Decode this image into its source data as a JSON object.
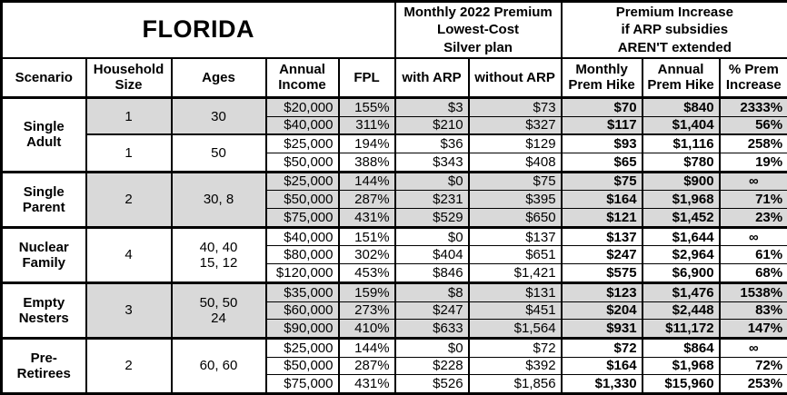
{
  "chart_data": {
    "type": "table",
    "title": "FLORIDA",
    "column_groups": [
      {
        "label": "Monthly 2022 Premium\nLowest-Cost\nSilver plan",
        "span": [
          "with ARP",
          "without ARP"
        ]
      },
      {
        "label": "Premium Increase\nif ARP subsidies\nAREN'T extended",
        "span": [
          "Monthly Prem Hike",
          "Annual Prem Hike",
          "% Prem Increase"
        ]
      }
    ],
    "columns": [
      "Scenario",
      "Household\nSize",
      "Ages",
      "Annual\nIncome",
      "FPL",
      "with ARP",
      "without ARP",
      "Monthly\nPrem Hike",
      "Annual\nPrem Hike",
      "% Prem\nIncrease"
    ],
    "colors": {
      "shaded_row_bg": "#d9d9d9",
      "border": "#000000",
      "background": "#ffffff",
      "text": "#000000"
    },
    "groups": [
      {
        "scenario": "Single\nAdult",
        "subgroups": [
          {
            "household_size": "1",
            "ages": "30",
            "shaded": true,
            "rows": [
              [
                "$20,000",
                "155%",
                "$3",
                "$73",
                "$70",
                "$840",
                "2333%"
              ],
              [
                "$40,000",
                "311%",
                "$210",
                "$327",
                "$117",
                "$1,404",
                "56%"
              ]
            ]
          },
          {
            "household_size": "1",
            "ages": "50",
            "shaded": false,
            "rows": [
              [
                "$25,000",
                "194%",
                "$36",
                "$129",
                "$93",
                "$1,116",
                "258%"
              ],
              [
                "$50,000",
                "388%",
                "$343",
                "$408",
                "$65",
                "$780",
                "19%"
              ]
            ]
          }
        ]
      },
      {
        "scenario": "Single\nParent",
        "subgroups": [
          {
            "household_size": "2",
            "ages": "30, 8",
            "shaded": true,
            "rows": [
              [
                "$25,000",
                "144%",
                "$0",
                "$75",
                "$75",
                "$900",
                "∞"
              ],
              [
                "$50,000",
                "287%",
                "$231",
                "$395",
                "$164",
                "$1,968",
                "71%"
              ],
              [
                "$75,000",
                "431%",
                "$529",
                "$650",
                "$121",
                "$1,452",
                "23%"
              ]
            ]
          }
        ]
      },
      {
        "scenario": "Nuclear\nFamily",
        "subgroups": [
          {
            "household_size": "4",
            "ages": "40, 40\n15, 12",
            "shaded": false,
            "rows": [
              [
                "$40,000",
                "151%",
                "$0",
                "$137",
                "$137",
                "$1,644",
                "∞"
              ],
              [
                "$80,000",
                "302%",
                "$404",
                "$651",
                "$247",
                "$2,964",
                "61%"
              ],
              [
                "$120,000",
                "453%",
                "$846",
                "$1,421",
                "$575",
                "$6,900",
                "68%"
              ]
            ]
          }
        ]
      },
      {
        "scenario": "Empty\nNesters",
        "subgroups": [
          {
            "household_size": "3",
            "ages": "50, 50\n24",
            "shaded": true,
            "rows": [
              [
                "$35,000",
                "159%",
                "$8",
                "$131",
                "$123",
                "$1,476",
                "1538%"
              ],
              [
                "$60,000",
                "273%",
                "$247",
                "$451",
                "$204",
                "$2,448",
                "83%"
              ],
              [
                "$90,000",
                "410%",
                "$633",
                "$1,564",
                "$931",
                "$11,172",
                "147%"
              ]
            ]
          }
        ]
      },
      {
        "scenario": "Pre-\nRetirees",
        "subgroups": [
          {
            "household_size": "2",
            "ages": "60, 60",
            "shaded": false,
            "rows": [
              [
                "$25,000",
                "144%",
                "$0",
                "$72",
                "$72",
                "$864",
                "∞"
              ],
              [
                "$50,000",
                "287%",
                "$228",
                "$392",
                "$164",
                "$1,968",
                "72%"
              ],
              [
                "$75,000",
                "431%",
                "$526",
                "$1,856",
                "$1,330",
                "$15,960",
                "253%"
              ]
            ]
          }
        ]
      }
    ]
  }
}
